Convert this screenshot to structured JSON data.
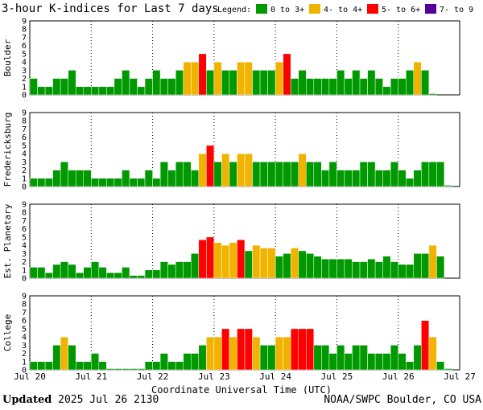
{
  "footer": {
    "updated_label": "Updated",
    "updated_value": "2025 Jul 26 2130",
    "credit": "NOAA/SWPC Boulder, CO USA"
  },
  "chart_data": {
    "type": "bar",
    "title": "3-hour K-indices for Last 7 days",
    "legend": {
      "title": "Legend:",
      "placement": "top-right",
      "items": [
        {
          "label": "0 to 3+",
          "color": "#009900"
        },
        {
          "label": "4- to 4+",
          "color": "#f0b400"
        },
        {
          "label": "5- to 6+",
          "color": "#ff0000"
        },
        {
          "label": "7- to 9",
          "color": "#550099"
        }
      ]
    },
    "xlabel": "Coordinate Universal Time (UTC)",
    "x_ticks": [
      "Jul 20",
      "Jul 21",
      "Jul 22",
      "Jul 23",
      "Jul 24",
      "Jul 25",
      "Jul 26",
      "Jul 27"
    ],
    "ylim": [
      0,
      9
    ],
    "y_ticks": [
      "0",
      "1",
      "2",
      "3",
      "4",
      "5",
      "6",
      "7",
      "8",
      "9"
    ],
    "grid": true,
    "panels": [
      {
        "name": "Boulder",
        "values": [
          2,
          1,
          1,
          2,
          2,
          3,
          1,
          1,
          1,
          1,
          1,
          2,
          3,
          2,
          1,
          2,
          3,
          2,
          2,
          3,
          4,
          4,
          5,
          3,
          4,
          3,
          3,
          4,
          4,
          3,
          3,
          3,
          4,
          5,
          2,
          3,
          2,
          2,
          2,
          2,
          3,
          2,
          3,
          2,
          3,
          2,
          1,
          2,
          2,
          3,
          4,
          3,
          0
        ]
      },
      {
        "name": "Fredericksburg",
        "values": [
          1,
          1,
          1,
          2,
          3,
          2,
          2,
          2,
          1,
          1,
          1,
          1,
          2,
          1,
          1,
          2,
          1,
          3,
          2,
          3,
          3,
          2,
          4,
          5,
          3,
          4,
          3,
          4,
          4,
          3,
          3,
          3,
          3,
          3,
          3,
          4,
          3,
          3,
          2,
          3,
          2,
          2,
          2,
          3,
          3,
          2,
          2,
          3,
          2,
          1,
          2,
          3,
          3,
          3,
          0
        ]
      },
      {
        "name": "Est. Planetary",
        "values": [
          1.33,
          1.33,
          0.67,
          1.67,
          2,
          1.67,
          0.67,
          1.33,
          2,
          1.33,
          0.67,
          0.67,
          1.33,
          0.33,
          0.33,
          1,
          1,
          2,
          1.67,
          2,
          2,
          3,
          4.67,
          5,
          4.33,
          4,
          4.33,
          4.67,
          3.33,
          4,
          3.67,
          3.67,
          2.67,
          3,
          3.67,
          3.33,
          3,
          2.67,
          2.33,
          2.33,
          2.33,
          2.33,
          2,
          2,
          2.33,
          2,
          2.67,
          2,
          1.67,
          1.67,
          3,
          3,
          4,
          2.67
        ]
      },
      {
        "name": "College",
        "values": [
          1,
          1,
          1,
          3,
          4,
          3,
          1,
          1,
          2,
          1,
          0,
          0,
          0,
          0,
          0,
          1,
          1,
          2,
          1,
          1,
          2,
          2,
          3,
          4,
          4,
          5,
          4,
          5,
          5,
          4,
          3,
          3,
          4,
          4,
          5,
          5,
          5,
          3,
          3,
          2,
          3,
          2,
          3,
          3,
          2,
          2,
          2,
          3,
          2,
          1,
          3,
          6,
          4,
          1,
          0
        ]
      }
    ]
  }
}
